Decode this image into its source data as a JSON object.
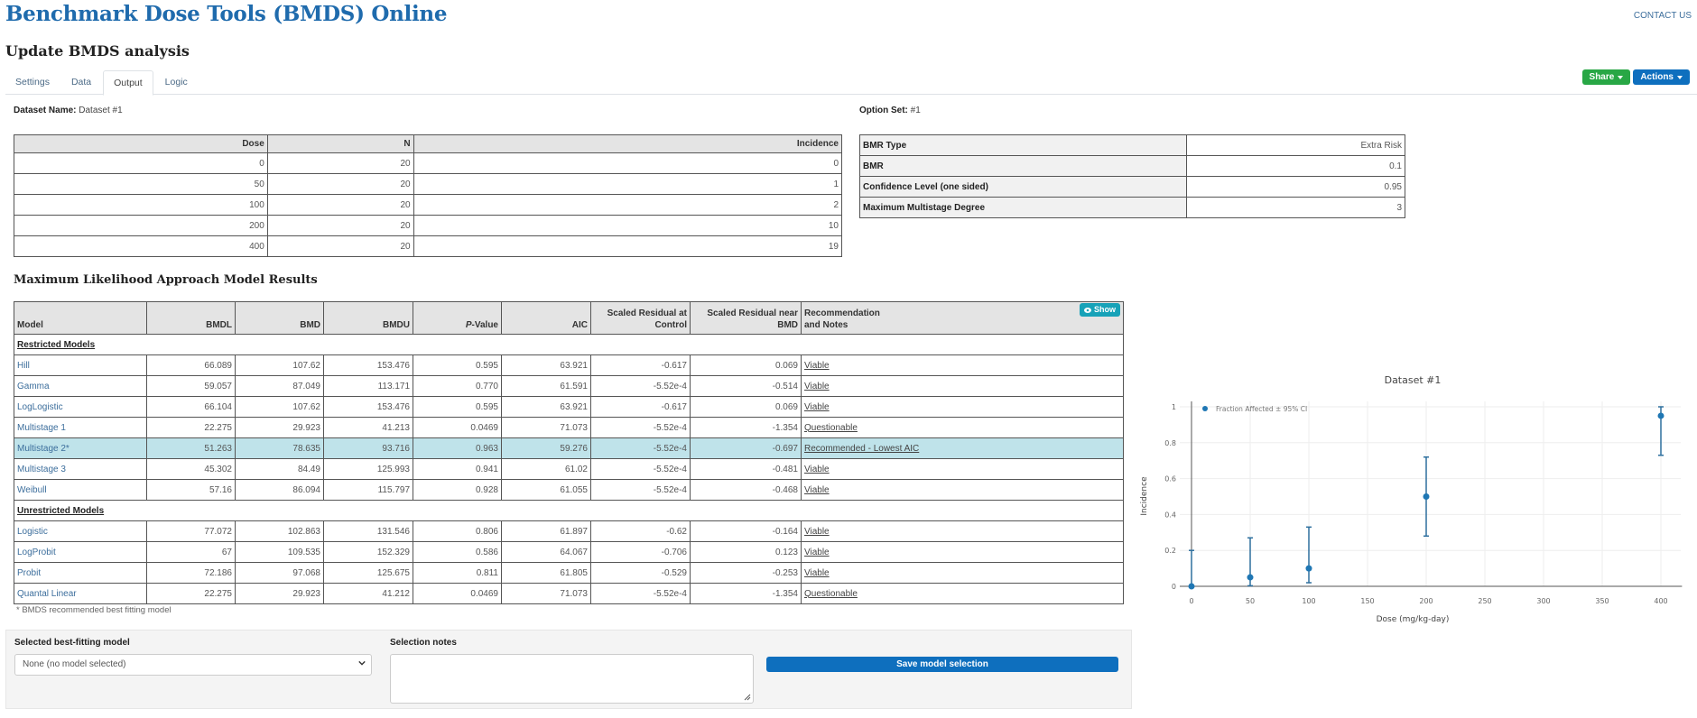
{
  "header": {
    "brand": "Benchmark Dose Tools (BMDS) Online",
    "contact": "CONTACT US",
    "page_title": "Update BMDS analysis"
  },
  "tabs": [
    {
      "label": "Settings",
      "active": false
    },
    {
      "label": "Data",
      "active": false
    },
    {
      "label": "Output",
      "active": true
    },
    {
      "label": "Logic",
      "active": false
    }
  ],
  "toolbar": {
    "share_label": "Share",
    "actions_label": "Actions",
    "share_color": "#28a745",
    "actions_color": "#0e6fbe"
  },
  "dataset": {
    "name_label": "Dataset Name:",
    "name_value": "Dataset #1",
    "columns": [
      "Dose",
      "N",
      "Incidence"
    ],
    "rows": [
      [
        "0",
        "20",
        "0"
      ],
      [
        "50",
        "20",
        "1"
      ],
      [
        "100",
        "20",
        "2"
      ],
      [
        "200",
        "20",
        "10"
      ],
      [
        "400",
        "20",
        "19"
      ]
    ]
  },
  "options": {
    "label": "Option Set:",
    "value": "#1",
    "rows": [
      [
        "BMR Type",
        "Extra Risk"
      ],
      [
        "BMR",
        "0.1"
      ],
      [
        "Confidence Level (one sided)",
        "0.95"
      ],
      [
        "Maximum Multistage Degree",
        "3"
      ]
    ]
  },
  "results": {
    "title": "Maximum Likelihood Approach Model Results",
    "columns": {
      "model": "Model",
      "bmdl": "BMDL",
      "bmd": "BMD",
      "bmdu": "BMDU",
      "pvalue_italic": "P",
      "pvalue_rest": "-Value",
      "aic": "AIC",
      "res_control_1": "Scaled Residual at",
      "res_control_2": "Control",
      "res_bmd_1": "Scaled Residual near",
      "res_bmd_2": "BMD",
      "rec_1": "Recommendation",
      "rec_2": "and Notes"
    },
    "show_label": "Show",
    "groups": {
      "restricted": "Restricted Models",
      "unrestricted": "Unrestricted Models"
    },
    "restricted": [
      {
        "model": "Hill",
        "bmdl": "66.089",
        "bmd": "107.62",
        "bmdu": "153.476",
        "p": "0.595",
        "aic": "63.921",
        "rc": "-0.617",
        "rb": "0.069",
        "rec": "Viable"
      },
      {
        "model": "Gamma",
        "bmdl": "59.057",
        "bmd": "87.049",
        "bmdu": "113.171",
        "p": "0.770",
        "aic": "61.591",
        "rc": "-5.52e-4",
        "rb": "-0.514",
        "rec": "Viable"
      },
      {
        "model": "LogLogistic",
        "bmdl": "66.104",
        "bmd": "107.62",
        "bmdu": "153.476",
        "p": "0.595",
        "aic": "63.921",
        "rc": "-0.617",
        "rb": "0.069",
        "rec": "Viable"
      },
      {
        "model": "Multistage 1",
        "bmdl": "22.275",
        "bmd": "29.923",
        "bmdu": "41.213",
        "p": "0.0469",
        "aic": "71.073",
        "rc": "-5.52e-4",
        "rb": "-1.354",
        "rec": "Questionable"
      },
      {
        "model": "Multistage 2*",
        "bmdl": "51.263",
        "bmd": "78.635",
        "bmdu": "93.716",
        "p": "0.963",
        "aic": "59.276",
        "rc": "-5.52e-4",
        "rb": "-0.697",
        "rec": "Recommended - Lowest AIC"
      },
      {
        "model": "Multistage 3",
        "bmdl": "45.302",
        "bmd": "84.49",
        "bmdu": "125.993",
        "p": "0.941",
        "aic": "61.02",
        "rc": "-5.52e-4",
        "rb": "-0.481",
        "rec": "Viable"
      },
      {
        "model": "Weibull",
        "bmdl": "57.16",
        "bmd": "86.094",
        "bmdu": "115.797",
        "p": "0.928",
        "aic": "61.055",
        "rc": "-5.52e-4",
        "rb": "-0.468",
        "rec": "Viable"
      }
    ],
    "unrestricted": [
      {
        "model": "Logistic",
        "bmdl": "77.072",
        "bmd": "102.863",
        "bmdu": "131.546",
        "p": "0.806",
        "aic": "61.897",
        "rc": "-0.62",
        "rb": "-0.164",
        "rec": "Viable"
      },
      {
        "model": "LogProbit",
        "bmdl": "67",
        "bmd": "109.535",
        "bmdu": "152.329",
        "p": "0.586",
        "aic": "64.067",
        "rc": "-0.706",
        "rb": "0.123",
        "rec": "Viable"
      },
      {
        "model": "Probit",
        "bmdl": "72.186",
        "bmd": "97.068",
        "bmdu": "125.675",
        "p": "0.811",
        "aic": "61.805",
        "rc": "-0.529",
        "rb": "-0.253",
        "rec": "Viable"
      },
      {
        "model": "Quantal Linear",
        "bmdl": "22.275",
        "bmd": "29.923",
        "bmdu": "41.212",
        "p": "0.0469",
        "aic": "71.073",
        "rc": "-5.52e-4",
        "rb": "-1.354",
        "rec": "Questionable"
      }
    ],
    "highlight_color": "#bfe3ea",
    "footnote": "* BMDS recommended best fitting model"
  },
  "selection": {
    "model_label": "Selected best-fitting model",
    "model_value": "None (no model selected)",
    "notes_label": "Selection notes",
    "notes_value": "",
    "save_label": "Save model selection"
  },
  "chart_data": {
    "type": "scatter",
    "title": "Dataset #1",
    "xlabel": "Dose (mg/kg-day)",
    "ylabel": "Incidence",
    "legend": [
      "Fraction Affected ± 95% CI"
    ],
    "legend_position": "top-left inside",
    "x": [
      0,
      50,
      100,
      200,
      400
    ],
    "series": [
      {
        "name": "Fraction Affected ± 95% CI",
        "values": [
          0,
          0.05,
          0.1,
          0.5,
          0.95
        ],
        "ci_lower": [
          0,
          0.003,
          0.02,
          0.28,
          0.73
        ],
        "ci_upper": [
          0.2,
          0.27,
          0.33,
          0.72,
          1.0
        ],
        "color": "#1f77b4"
      }
    ],
    "xticks": [
      "0",
      "50",
      "100",
      "150",
      "200",
      "250",
      "300",
      "350",
      "400"
    ],
    "yticks": [
      "0",
      "0.2",
      "0.4",
      "0.6",
      "0.8",
      "1"
    ],
    "xlim": [
      -10,
      420
    ],
    "ylim": [
      -0.02,
      1.03
    ],
    "grid": true
  }
}
